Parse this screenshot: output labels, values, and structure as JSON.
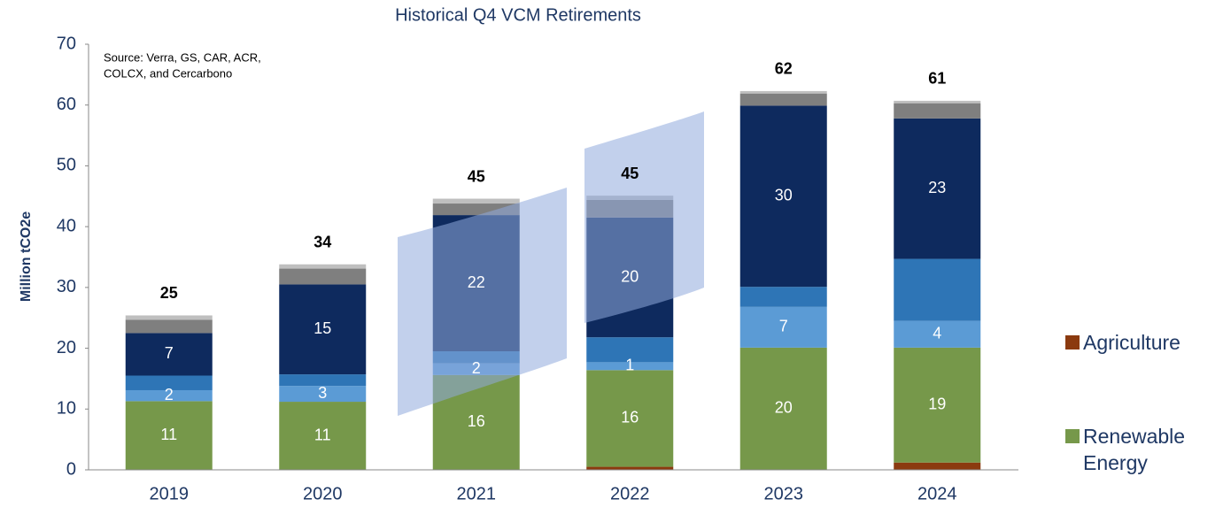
{
  "chart_data": {
    "type": "stacked_bar",
    "title": "Historical Q4 VCM Retirements",
    "y_label": "Million tCO2e",
    "source": [
      "Source: Verra, GS, CAR, ACR,",
      "COLCX, and Cercarbono"
    ],
    "categories": [
      "2019",
      "2020",
      "2021",
      "2022",
      "2023",
      "2024"
    ],
    "series": [
      {
        "name": "Agriculture",
        "color": "#8b3a0f",
        "values": [
          0,
          0,
          0,
          0.5,
          0,
          1.2
        ]
      },
      {
        "name": "Renewable Energy",
        "color": "#76984a",
        "values": [
          11.3,
          11.2,
          15.6,
          15.9,
          20.1,
          18.9
        ],
        "value_labels": [
          "11",
          "11",
          "16",
          "16",
          "20",
          "19"
        ]
      },
      {
        "color": "#5b9bd5",
        "values": [
          1.8,
          2.6,
          1.9,
          1.3,
          6.7,
          4.4
        ],
        "value_labels": [
          "2",
          "3",
          "2",
          "1",
          "7",
          "4"
        ]
      },
      {
        "color": "#2e75b6",
        "values": [
          2.4,
          1.9,
          2.0,
          4.1,
          3.3,
          10.2
        ]
      },
      {
        "color": "#0e2a5e",
        "values": [
          7.0,
          14.8,
          22.4,
          19.7,
          29.8,
          23.1
        ],
        "value_labels": [
          "7",
          "15",
          "22",
          "20",
          "30",
          "23"
        ]
      },
      {
        "color": "#7f7f7f",
        "values": [
          2.2,
          2.6,
          1.9,
          2.9,
          2.0,
          2.5
        ]
      },
      {
        "color": "#bfbfbf",
        "values": [
          0.7,
          0.7,
          0.8,
          0.7,
          0.4,
          0.4
        ]
      }
    ],
    "totals": [
      25,
      34,
      45,
      45,
      62,
      61
    ],
    "ylim": [
      0,
      70
    ],
    "yticks": [
      0,
      10,
      20,
      30,
      40,
      50,
      60,
      70
    ],
    "grid": false
  }
}
